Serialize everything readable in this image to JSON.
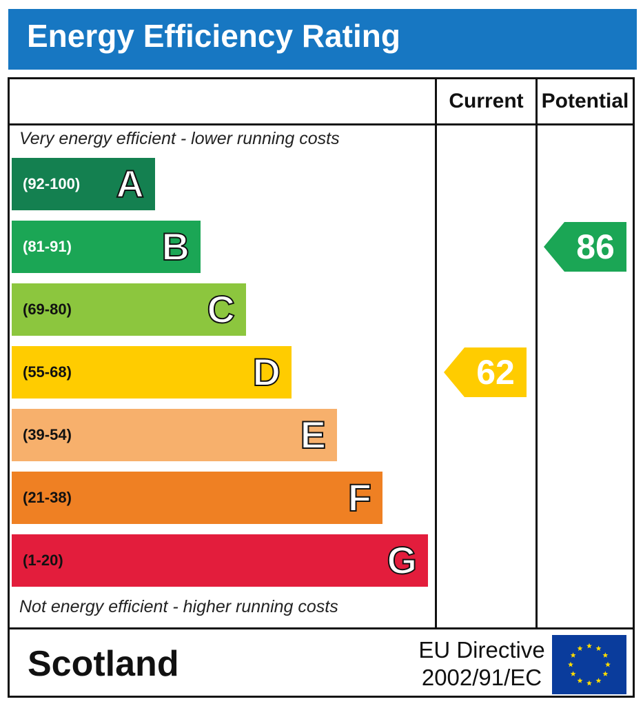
{
  "header": {
    "title": "Energy Efficiency Rating"
  },
  "columns": {
    "current": "Current",
    "potential": "Potential"
  },
  "notes": {
    "top": "Very energy efficient - lower running costs",
    "bottom": "Not energy efficient - higher running costs"
  },
  "chart_data": {
    "type": "bar",
    "title": "Energy Efficiency Rating",
    "bands": [
      {
        "letter": "A",
        "range": "(92-100)",
        "color": "#148050",
        "text_color": "#ffffff"
      },
      {
        "letter": "B",
        "range": "(81-91)",
        "color": "#1ba655",
        "text_color": "#ffffff"
      },
      {
        "letter": "C",
        "range": "(69-80)",
        "color": "#8cc63e",
        "text_color": "#111111"
      },
      {
        "letter": "D",
        "range": "(55-68)",
        "color": "#ffcc00",
        "text_color": "#111111"
      },
      {
        "letter": "E",
        "range": "(39-54)",
        "color": "#f7b06c",
        "text_color": "#111111"
      },
      {
        "letter": "F",
        "range": "(21-38)",
        "color": "#ef8023",
        "text_color": "#111111"
      },
      {
        "letter": "G",
        "range": "(1-20)",
        "color": "#e31d3c",
        "text_color": "#111111"
      }
    ],
    "current": {
      "value": 62,
      "band": "D",
      "color": "#ffcc00"
    },
    "potential": {
      "value": 86,
      "band": "B",
      "color": "#1ba655"
    }
  },
  "footer": {
    "country": "Scotland",
    "directive_line1": "EU Directive",
    "directive_line2": "2002/91/EC",
    "flag_color": "#0a3c9c",
    "star_color": "#ffdd00"
  }
}
